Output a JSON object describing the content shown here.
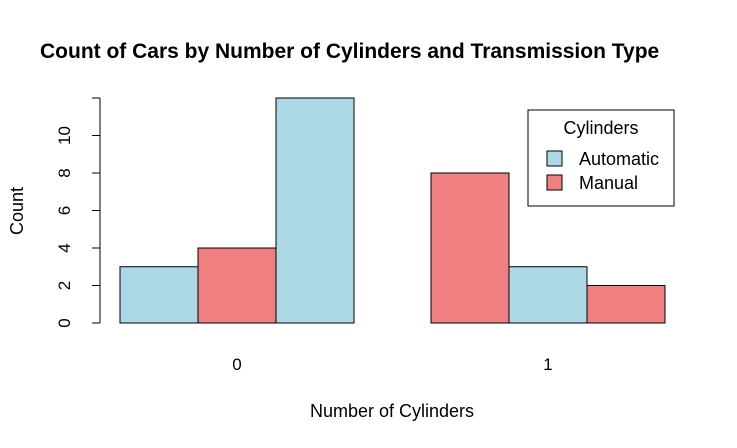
{
  "chart_data": {
    "type": "bar",
    "layout": "grouped",
    "title": "Count of Cars by Number of Cylinders and Transmission Type",
    "xlabel": "Number of Cylinders",
    "ylabel": "Count",
    "categories": [
      "0",
      "1"
    ],
    "ylim": [
      0,
      12
    ],
    "yticks": [
      "0",
      "2",
      "4",
      "6",
      "8",
      "10"
    ],
    "groups": [
      {
        "category": "0",
        "bars": [
          {
            "value": 3,
            "color": "#add8e6"
          },
          {
            "value": 4,
            "color": "#f08080"
          },
          {
            "value": 12,
            "color": "#add8e6"
          }
        ]
      },
      {
        "category": "1",
        "bars": [
          {
            "value": 8,
            "color": "#f08080"
          },
          {
            "value": 3,
            "color": "#add8e6"
          },
          {
            "value": 2,
            "color": "#f08080"
          }
        ]
      }
    ],
    "legend": {
      "title": "Cylinders",
      "placement": "top-right",
      "entries": [
        {
          "label": "Automatic",
          "color": "#add8e6"
        },
        {
          "label": "Manual",
          "color": "#f08080"
        }
      ]
    },
    "grid": false
  }
}
